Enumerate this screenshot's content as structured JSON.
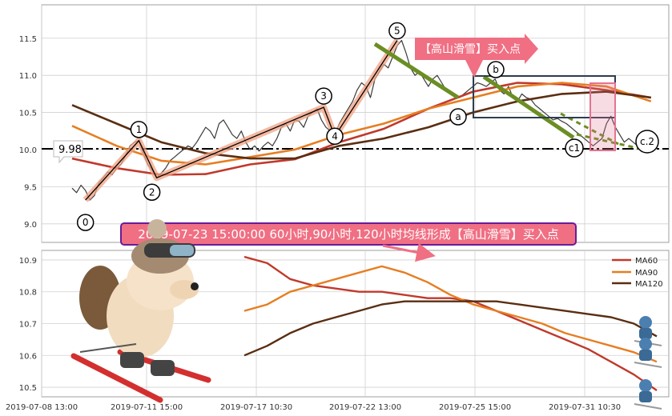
{
  "colors": {
    "price": "#3a3a3a",
    "ma60": "#c0392b",
    "ma90": "#e67e22",
    "ma120": "#5a2e12",
    "wave": "#f0a080",
    "trend": "#6b8e23",
    "banner": "#f06f83",
    "banner_border": "#6a1b9a",
    "box": "#2c3e50",
    "pinkbox": "#e57390"
  },
  "annotations": {
    "price_level": "9.98",
    "signal_tag": "【高山滑雪】买入点",
    "banner": "2019-07-23 15:00:00 60小时,90小时,120小时均线形成【高山滑雪】买入点",
    "wave_labels": [
      "0",
      "1",
      "2",
      "3",
      "4",
      "5",
      "a",
      "b",
      "c1",
      "c.2"
    ]
  },
  "chart_data": [
    {
      "type": "line",
      "title": "",
      "xlabel": "",
      "ylabel": "",
      "x_ticks": [
        "2019-07-08 13:00",
        "2019-07-11 15:00",
        "2019-07-17 10:30",
        "2019-07-22 13:00",
        "2019-07-25 15:00",
        "2019-07-31 10:30"
      ],
      "ylim": [
        8.75,
        11.95
      ],
      "y_ticks": [
        9.0,
        9.5,
        10.0,
        10.5,
        11.0,
        11.5
      ],
      "grid": true,
      "horizontal_line": 9.98,
      "series": [
        {
          "role": "price",
          "x": [
            0,
            2,
            4,
            6,
            8,
            10,
            12,
            14,
            16,
            18,
            20,
            22,
            24,
            26,
            28,
            30,
            32,
            34,
            36,
            38,
            40,
            42,
            44,
            46,
            48,
            50,
            52,
            54,
            56,
            58,
            60,
            62,
            64,
            66,
            68,
            70,
            72,
            74,
            76,
            78,
            80,
            82,
            84,
            86,
            88,
            90,
            92,
            94,
            96,
            98,
            100,
            102,
            104,
            106,
            108,
            110,
            112,
            114,
            116,
            118,
            120,
            122,
            124,
            126,
            128,
            130,
            132,
            134,
            136,
            138,
            140,
            142,
            144,
            146,
            148,
            150,
            152,
            154,
            156,
            158,
            160,
            162,
            164,
            166,
            168,
            170,
            172,
            174,
            176,
            178,
            180,
            182,
            184,
            186,
            188,
            190,
            192,
            194,
            196,
            198,
            200,
            202,
            204,
            206,
            208,
            210,
            212,
            214,
            216,
            218,
            220,
            222,
            224,
            226,
            228,
            230,
            232,
            234,
            236,
            238,
            240,
            242,
            244,
            246,
            248,
            250,
            252,
            254,
            256,
            258,
            260
          ],
          "values": [
            9.48,
            9.42,
            9.52,
            9.45,
            9.32,
            9.38,
            9.55,
            9.62,
            9.7,
            9.66,
            9.75,
            9.8,
            9.92,
            10.05,
            10.1,
            10.12,
            9.95,
            9.8,
            9.72,
            9.62,
            9.68,
            9.75,
            9.85,
            9.9,
            9.95,
            10.0,
            10.05,
            10.02,
            10.1,
            10.2,
            10.3,
            10.25,
            10.15,
            10.35,
            10.4,
            10.3,
            10.2,
            10.15,
            10.25,
            10.1,
            10.0,
            10.05,
            9.98,
            10.05,
            10.1,
            10.05,
            10.15,
            10.3,
            10.35,
            10.25,
            10.4,
            10.38,
            10.3,
            10.45,
            10.5,
            10.55,
            10.4,
            10.3,
            10.25,
            10.2,
            10.35,
            10.45,
            10.55,
            10.65,
            10.8,
            10.9,
            10.85,
            10.7,
            10.95,
            11.05,
            11.15,
            11.1,
            11.25,
            11.4,
            11.47,
            11.3,
            11.1,
            11.0,
            11.05,
            10.95,
            10.85,
            10.95,
            11.0,
            10.9,
            10.8,
            10.75,
            10.72,
            10.7,
            10.75,
            10.8,
            10.85,
            10.9,
            10.88,
            10.85,
            10.9,
            10.95,
            10.8,
            10.75,
            10.85,
            10.7,
            10.65,
            10.75,
            10.7,
            10.68,
            10.6,
            10.55,
            10.5,
            10.45,
            10.4,
            10.42,
            10.38,
            10.35,
            10.3,
            10.25,
            10.2,
            10.15,
            10.1,
            10.05,
            10.1,
            10.15,
            10.35,
            10.45,
            10.3,
            10.2,
            10.1,
            10.15,
            10.1,
            10.05,
            10.05,
            10.02,
            10.0
          ]
        },
        {
          "name": "MA60",
          "role": "ma60",
          "x": [
            0,
            20,
            40,
            60,
            80,
            100,
            120,
            140,
            160,
            180,
            200,
            220,
            240,
            260
          ],
          "values": [
            9.88,
            9.75,
            9.66,
            9.67,
            9.8,
            9.87,
            10.1,
            10.28,
            10.55,
            10.78,
            10.9,
            10.88,
            10.8,
            10.7
          ]
        },
        {
          "name": "MA90",
          "role": "ma90",
          "x": [
            0,
            20,
            40,
            60,
            80,
            100,
            120,
            140,
            160,
            180,
            200,
            220,
            240,
            260
          ],
          "values": [
            10.32,
            10.05,
            9.85,
            9.8,
            9.9,
            10.0,
            10.2,
            10.35,
            10.55,
            10.7,
            10.85,
            10.9,
            10.85,
            10.65
          ]
        },
        {
          "name": "MA120",
          "role": "ma120",
          "x": [
            0,
            20,
            40,
            60,
            80,
            100,
            120,
            140,
            160,
            180,
            200,
            220,
            240,
            260
          ],
          "values": [
            10.6,
            10.35,
            10.1,
            9.95,
            9.88,
            9.88,
            10.05,
            10.15,
            10.3,
            10.5,
            10.65,
            10.75,
            10.78,
            10.7
          ]
        }
      ],
      "waves": {
        "points": [
          [
            6,
            9.32
          ],
          [
            30,
            10.12
          ],
          [
            38,
            9.62
          ],
          [
            113,
            10.57
          ],
          [
            118,
            10.18
          ],
          [
            146,
            11.47
          ]
        ],
        "labels": [
          "0",
          "1",
          "2",
          "3",
          "4",
          "5"
        ]
      }
    },
    {
      "type": "line",
      "title": "",
      "xlabel": "",
      "ylabel": "",
      "ylim": [
        10.47,
        10.93
      ],
      "y_ticks": [
        10.5,
        10.6,
        10.7,
        10.8,
        10.9
      ],
      "grid": true,
      "legend": "top-right",
      "x": [
        0,
        1,
        2,
        3,
        4,
        5,
        6,
        7,
        8,
        9,
        10,
        11,
        12,
        13,
        14,
        15,
        16,
        17,
        18
      ],
      "series": [
        {
          "name": "MA60",
          "values": [
            10.91,
            10.89,
            10.84,
            10.82,
            10.81,
            10.8,
            10.8,
            10.79,
            10.78,
            10.78,
            10.77,
            10.74,
            10.71,
            10.68,
            10.65,
            10.62,
            10.58,
            10.54,
            10.49
          ]
        },
        {
          "name": "MA90",
          "values": [
            10.74,
            10.76,
            10.8,
            10.82,
            10.84,
            10.86,
            10.88,
            10.86,
            10.83,
            10.79,
            10.76,
            10.74,
            10.72,
            10.7,
            10.67,
            10.65,
            10.63,
            10.61,
            10.58
          ]
        },
        {
          "name": "MA120",
          "values": [
            10.6,
            10.63,
            10.67,
            10.7,
            10.72,
            10.74,
            10.76,
            10.77,
            10.77,
            10.77,
            10.77,
            10.77,
            10.76,
            10.75,
            10.74,
            10.73,
            10.72,
            10.7,
            10.66
          ]
        }
      ]
    }
  ]
}
